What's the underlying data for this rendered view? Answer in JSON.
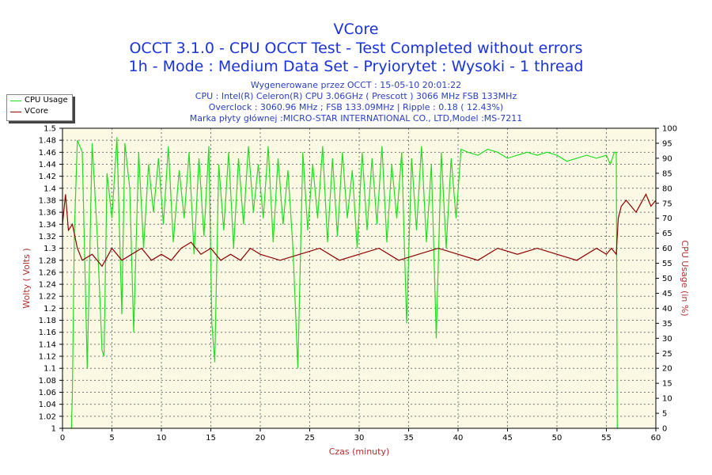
{
  "titles": {
    "line1": "VCore",
    "line2": "OCCT 3.1.0 - CPU OCCT Test - Test Completed without errors",
    "line3": "1h - Mode : Medium Data Set - Pryiorytet : Wysoki - 1 thread"
  },
  "info": {
    "line1": "Wygenerowane przez OCCT : 15-05-10 20:01:22",
    "line2": "CPU : Intel(R) Celeron(R) CPU 3.06GHz ( Prescott ) 3066 MHz FSB 133MHz",
    "line3": "Overclock : 3060.96 MHz ; FSB 133.09MHz | Ripple : 0.18 ( 12.43%)",
    "line4": "Marka płyty głównej :MICRO-STAR INTERNATIONAL CO., LTD,Model :MS-7211"
  },
  "colors": {
    "cpu_usage": "#22dd22",
    "vcore": "#8b0000",
    "plot_bg": "#fbf9e4",
    "grid": "#777777",
    "title": "#1a33d8",
    "axis_label": "#b03030"
  },
  "chart_data": {
    "type": "line",
    "xlabel": "Czas (minuty)",
    "ylabel_left": "Wolty ( Volts )",
    "ylabel_right": "CPU Usage (in %)",
    "xlim": [
      0,
      60
    ],
    "ylim_left": [
      1.0,
      1.5
    ],
    "ylim_right": [
      0,
      100
    ],
    "x_ticks": [
      0,
      5,
      10,
      15,
      20,
      25,
      30,
      35,
      40,
      45,
      50,
      55,
      60
    ],
    "y_ticks_left": [
      1,
      1.02,
      1.04,
      1.06,
      1.08,
      1.1,
      1.12,
      1.14,
      1.16,
      1.18,
      1.2,
      1.22,
      1.24,
      1.26,
      1.28,
      1.3,
      1.32,
      1.34,
      1.36,
      1.38,
      1.4,
      1.42,
      1.44,
      1.46,
      1.48,
      1.5
    ],
    "y_ticks_right": [
      0,
      5,
      10,
      15,
      20,
      25,
      30,
      35,
      40,
      45,
      50,
      55,
      60,
      65,
      70,
      75,
      80,
      85,
      90,
      95,
      100
    ],
    "grid": true,
    "legend_position": "top-left",
    "series": [
      {
        "name": "CPU Usage",
        "axis": "right",
        "x": [
          0.9,
          1.0,
          1.2,
          1.5,
          2.0,
          2.5,
          3.0,
          3.5,
          4.0,
          4.2,
          4.5,
          5.0,
          5.5,
          6.0,
          6.3,
          6.8,
          7.2,
          7.7,
          8.2,
          8.7,
          9.2,
          9.7,
          10.2,
          10.7,
          11.2,
          11.8,
          12.3,
          12.8,
          13.3,
          13.8,
          14.3,
          14.8,
          15.1,
          15.4,
          15.8,
          16.3,
          16.8,
          17.3,
          17.8,
          18.3,
          18.8,
          19.3,
          19.8,
          20.3,
          20.8,
          21.3,
          21.8,
          22.3,
          22.8,
          23.3,
          23.8,
          24.3,
          24.8,
          25.3,
          25.8,
          26.3,
          26.8,
          27.3,
          27.8,
          28.3,
          28.8,
          29.3,
          29.8,
          30.3,
          30.8,
          31.3,
          31.8,
          32.3,
          32.8,
          33.3,
          33.8,
          34.3,
          34.8,
          35.3,
          35.8,
          36.3,
          36.8,
          37.3,
          37.8,
          38.3,
          38.8,
          39.3,
          39.8,
          40.3,
          41.0,
          42.0,
          43.0,
          44.0,
          45.0,
          46.0,
          47.0,
          48.0,
          49.0,
          50.0,
          51.0,
          52.0,
          53.0,
          54.0,
          55.0,
          55.4,
          55.8,
          56.0,
          56.1,
          56.2
        ],
        "values": [
          0,
          12,
          65,
          96,
          92,
          20,
          95,
          65,
          26,
          24,
          85,
          70,
          97,
          38,
          95,
          80,
          32,
          92,
          60,
          88,
          72,
          90,
          68,
          94,
          62,
          86,
          70,
          92,
          58,
          90,
          64,
          94,
          35,
          22,
          88,
          66,
          92,
          60,
          90,
          68,
          94,
          72,
          88,
          70,
          94,
          62,
          90,
          68,
          86,
          60,
          20,
          92,
          66,
          88,
          70,
          94,
          62,
          90,
          64,
          92,
          70,
          86,
          60,
          92,
          66,
          90,
          68,
          94,
          62,
          88,
          70,
          92,
          35,
          90,
          66,
          94,
          62,
          88,
          30,
          92,
          60,
          90,
          70,
          93,
          92,
          91,
          93,
          92,
          90,
          91,
          92,
          91,
          92,
          91,
          89,
          90,
          91,
          90,
          91,
          88,
          92,
          92,
          0,
          0
        ]
      },
      {
        "name": "VCore",
        "axis": "left",
        "x": [
          0.0,
          0.3,
          0.6,
          1.0,
          1.5,
          2.0,
          3.0,
          4.0,
          5.0,
          6.0,
          7.0,
          8.0,
          9.0,
          10.0,
          11.0,
          12.0,
          13.0,
          14.0,
          15.0,
          16.0,
          17.0,
          18.0,
          19.0,
          20.0,
          22.0,
          24.0,
          26.0,
          28.0,
          30.0,
          32.0,
          34.0,
          36.0,
          38.0,
          40.0,
          42.0,
          44.0,
          46.0,
          48.0,
          50.0,
          52.0,
          54.0,
          55.0,
          55.5,
          56.0,
          56.2,
          56.5,
          57.0,
          58.0,
          59.0,
          59.5,
          60.0
        ],
        "values": [
          1.34,
          1.39,
          1.33,
          1.34,
          1.3,
          1.28,
          1.29,
          1.27,
          1.3,
          1.28,
          1.29,
          1.3,
          1.28,
          1.29,
          1.28,
          1.3,
          1.31,
          1.29,
          1.3,
          1.28,
          1.29,
          1.28,
          1.3,
          1.29,
          1.28,
          1.29,
          1.3,
          1.28,
          1.29,
          1.3,
          1.28,
          1.29,
          1.3,
          1.29,
          1.28,
          1.3,
          1.29,
          1.3,
          1.29,
          1.28,
          1.3,
          1.29,
          1.3,
          1.29,
          1.35,
          1.37,
          1.38,
          1.36,
          1.39,
          1.37,
          1.38
        ]
      }
    ]
  }
}
